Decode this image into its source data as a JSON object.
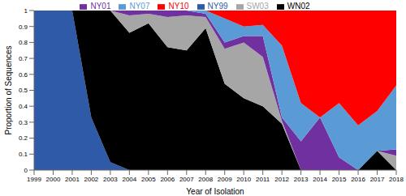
{
  "chart_data": {
    "type": "area",
    "stacked": true,
    "grid": true,
    "legend": "top",
    "x": [
      1999,
      2000,
      2001,
      2002,
      2003,
      2004,
      2005,
      2006,
      2007,
      2008,
      2009,
      2010,
      2011,
      2012,
      2013,
      2014,
      2015,
      2016,
      2017,
      2018
    ],
    "x_label": "Year of Isolation",
    "y_label": "Proportion of Sequences",
    "xlim": [
      1999,
      2018
    ],
    "xticks": [
      1999,
      2000,
      2001,
      2002,
      2003,
      2004,
      2005,
      2006,
      2007,
      2008,
      2009,
      2010,
      2011,
      2012,
      2013,
      2014,
      2015,
      2016,
      2017,
      2018
    ],
    "ylim": [
      0,
      1
    ],
    "yticks": [
      0,
      0.1,
      0.2,
      0.3,
      0.4,
      0.5,
      0.6,
      0.7,
      0.8,
      0.9,
      1
    ],
    "series": [
      {
        "name": "NY99",
        "color": "#2e5aa8",
        "values": [
          1,
          1,
          1,
          0.33,
          0.05,
          0,
          0,
          0,
          0,
          0,
          0,
          0,
          0,
          0,
          0,
          0,
          0,
          0,
          0,
          0
        ]
      },
      {
        "name": "WN02",
        "color": "#000000",
        "values": [
          0,
          0,
          0,
          0.67,
          0.95,
          0.86,
          0.92,
          0.77,
          0.75,
          0.89,
          0.54,
          0.45,
          0.4,
          0.29,
          0,
          0,
          0,
          0,
          0.12,
          0
        ]
      },
      {
        "name": "SW03",
        "color": "#a6a6a6",
        "values": [
          0,
          0,
          0,
          0,
          0,
          0.11,
          0.06,
          0.19,
          0.22,
          0.07,
          0.22,
          0.35,
          0.31,
          0.02,
          0,
          0,
          0,
          0,
          0,
          0.09
        ]
      },
      {
        "name": "NY01",
        "color": "#7030a0",
        "values": [
          0,
          0,
          0,
          0,
          0,
          0.03,
          0.02,
          0.04,
          0.03,
          0.02,
          0.04,
          0.04,
          0.13,
          0.02,
          0.18,
          0.33,
          0.08,
          0,
          0,
          0.04
        ]
      },
      {
        "name": "NY07",
        "color": "#5b9bd5",
        "values": [
          0,
          0,
          0,
          0,
          0,
          0,
          0,
          0,
          0,
          0.02,
          0.15,
          0.06,
          0.07,
          0.45,
          0.24,
          0,
          0.34,
          0.28,
          0.25,
          0.4
        ]
      },
      {
        "name": "NY10",
        "color": "#ff0000",
        "values": [
          0,
          0,
          0,
          0,
          0,
          0,
          0,
          0,
          0,
          0,
          0.05,
          0.1,
          0.09,
          0.22,
          0.58,
          0.67,
          0.58,
          0.72,
          0.63,
          0.47
        ]
      }
    ]
  }
}
